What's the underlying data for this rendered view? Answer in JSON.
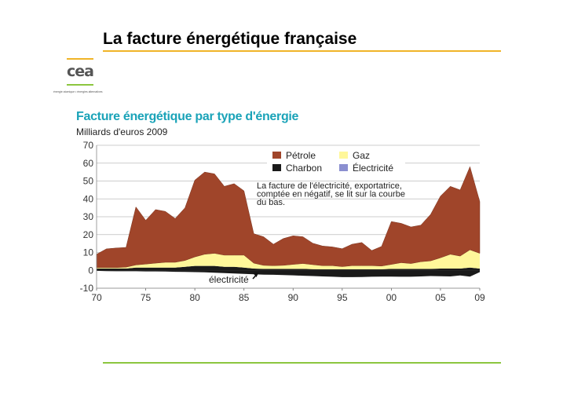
{
  "slide": {
    "title": "La facture énergétique française",
    "logo_text": "cea",
    "logo_tagline": "énergie atomique • énergies alternatives"
  },
  "colors": {
    "petrole": "#a0452a",
    "gaz": "#fff79a",
    "charbon": "#1a1a1a",
    "electricite": "#8b8fd0",
    "title_rule": "#f0b428",
    "bottom_rule": "#8cc63f",
    "chart_title": "#1aa3b8"
  },
  "chart_data": {
    "type": "area",
    "title": "Facture énergétique par type d'énergie",
    "subtitle": "Milliards d'euros 2009",
    "ylim": [
      -10,
      70
    ],
    "yticks": [
      70,
      60,
      50,
      40,
      30,
      20,
      10,
      0,
      -10
    ],
    "xlim": [
      1970,
      2009
    ],
    "xticks": [
      {
        "value": 1970,
        "label": "70"
      },
      {
        "value": 1975,
        "label": "75"
      },
      {
        "value": 1980,
        "label": "80"
      },
      {
        "value": 1985,
        "label": "85"
      },
      {
        "value": 1990,
        "label": "90"
      },
      {
        "value": 1995,
        "label": "95"
      },
      {
        "value": 2000,
        "label": "00"
      },
      {
        "value": 2005,
        "label": "05"
      },
      {
        "value": 2009,
        "label": "09"
      }
    ],
    "grid": "horizontal",
    "legend_position": "top-right",
    "stacked": true,
    "x": [
      1970,
      1971,
      1972,
      1973,
      1974,
      1975,
      1976,
      1977,
      1978,
      1979,
      1980,
      1981,
      1982,
      1983,
      1984,
      1985,
      1986,
      1987,
      1988,
      1989,
      1990,
      1991,
      1992,
      1993,
      1994,
      1995,
      1996,
      1997,
      1998,
      1999,
      2000,
      2001,
      2002,
      2003,
      2004,
      2005,
      2006,
      2007,
      2008,
      2009
    ],
    "series": [
      {
        "name": "Électricité",
        "key": "electricite",
        "values": [
          -0.3,
          -0.4,
          -0.5,
          -0.5,
          -0.5,
          -0.6,
          -0.6,
          -0.7,
          -0.8,
          -0.9,
          -1.0,
          -1.1,
          -1.3,
          -1.5,
          -1.8,
          -2.0,
          -2.2,
          -2.4,
          -2.5,
          -2.6,
          -2.8,
          -3.0,
          -3.2,
          -3.4,
          -3.6,
          -3.8,
          -3.8,
          -3.7,
          -3.6,
          -3.5,
          -3.5,
          -3.6,
          -3.6,
          -3.4,
          -3.2,
          -3.3,
          -3.4,
          -2.9,
          -3.5,
          -1.0
        ]
      },
      {
        "name": "Charbon",
        "key": "charbon",
        "values": [
          1.0,
          1.0,
          1.0,
          1.0,
          1.5,
          1.5,
          1.5,
          1.5,
          1.5,
          2.0,
          2.5,
          2.5,
          2.5,
          2.0,
          2.0,
          1.5,
          1.0,
          0.8,
          0.8,
          0.8,
          0.8,
          0.8,
          0.7,
          0.6,
          0.6,
          0.6,
          0.6,
          0.6,
          0.6,
          0.6,
          0.8,
          0.8,
          0.8,
          0.8,
          0.8,
          1.0,
          1.0,
          1.0,
          1.5,
          1.0
        ]
      },
      {
        "name": "Gaz",
        "key": "gaz",
        "values": [
          0.5,
          0.5,
          0.5,
          0.8,
          1.5,
          2.0,
          2.5,
          3.0,
          3.0,
          3.5,
          5.0,
          6.5,
          7.0,
          6.5,
          6.5,
          7.0,
          3.0,
          2.0,
          1.8,
          2.0,
          2.5,
          3.0,
          2.5,
          2.0,
          2.0,
          1.5,
          2.0,
          2.0,
          2.0,
          1.8,
          2.5,
          3.5,
          3.0,
          4.0,
          4.5,
          6.0,
          8.0,
          7.0,
          10.0,
          8.5
        ]
      },
      {
        "name": "Pétrole",
        "key": "petrole",
        "values": [
          7.5,
          10.5,
          11.0,
          11.0,
          32.5,
          24.5,
          30.0,
          28.5,
          24.5,
          29.5,
          43.0,
          46.0,
          44.5,
          38.5,
          40.0,
          36.0,
          16.5,
          16.0,
          12.0,
          15.0,
          16.0,
          15.0,
          12.0,
          11.0,
          10.5,
          10.0,
          12.0,
          13.0,
          8.5,
          11.0,
          24.0,
          22.0,
          20.5,
          20.5,
          26.0,
          34.5,
          38.0,
          37.0,
          46.5,
          29.0
        ]
      }
    ],
    "annotations": [
      {
        "text_lines": [
          "La facture de l'électricité, exportatrice,",
          "comptée en négatif, se lit sur la courbe",
          "du bas."
        ],
        "position": "upper-middle"
      },
      {
        "text": "électricité",
        "position": "bottom-middle",
        "arrow_to": {
          "x": 1986.5,
          "y": -1.2
        }
      }
    ]
  }
}
